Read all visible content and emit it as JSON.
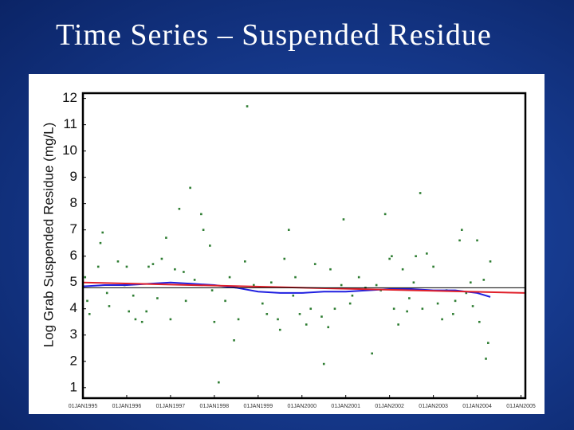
{
  "slide_title": "Time Series – Suspended Residue",
  "chart_data": {
    "type": "scatter",
    "ylabel": "Log Grab Suspended Residue (mg/L)",
    "xlim": [
      1995,
      2005.1
    ],
    "ylim": [
      0.6,
      12.2
    ],
    "xticks": [
      {
        "value": 1995,
        "label": "01JAN1995"
      },
      {
        "value": 1996,
        "label": "01JAN1996"
      },
      {
        "value": 1997,
        "label": "01JAN1997"
      },
      {
        "value": 1998,
        "label": "01JAN1998"
      },
      {
        "value": 1999,
        "label": "01JAN1999"
      },
      {
        "value": 2000,
        "label": "01JAN2000"
      },
      {
        "value": 2001,
        "label": "01JAN2001"
      },
      {
        "value": 2002,
        "label": "01JAN2002"
      },
      {
        "value": 2003,
        "label": "01JAN2003"
      },
      {
        "value": 2004,
        "label": "01JAN2004"
      },
      {
        "value": 2005,
        "label": "01JAN2005"
      }
    ],
    "yticks": [
      1,
      2,
      3,
      4,
      5,
      6,
      7,
      8,
      9,
      10,
      11,
      12
    ],
    "series": [
      {
        "type": "scatter",
        "color": "#2e7d32",
        "x": [
          1995.05,
          1995.1,
          1995.15,
          1995.35,
          1995.4,
          1995.45,
          1995.55,
          1995.6,
          1995.8,
          1995.95,
          1996.0,
          1996.05,
          1996.15,
          1996.2,
          1996.35,
          1996.45,
          1996.5,
          1996.6,
          1996.7,
          1996.8,
          1996.9,
          1997.0,
          1997.1,
          1997.2,
          1997.3,
          1997.35,
          1997.45,
          1997.55,
          1997.7,
          1997.75,
          1997.9,
          1997.95,
          1998.0,
          1998.1,
          1998.25,
          1998.35,
          1998.45,
          1998.55,
          1998.7,
          1998.75,
          1998.9,
          1999.1,
          1999.2,
          1999.3,
          1999.45,
          1999.5,
          1999.6,
          1999.7,
          1999.8,
          1999.85,
          1999.95,
          2000.1,
          2000.2,
          2000.3,
          2000.45,
          2000.5,
          2000.6,
          2000.65,
          2000.75,
          2000.9,
          2000.95,
          2001.1,
          2001.15,
          2001.3,
          2001.45,
          2001.6,
          2001.7,
          2001.8,
          2001.9,
          2002.0,
          2002.05,
          2002.1,
          2002.2,
          2002.3,
          2002.4,
          2002.45,
          2002.55,
          2002.6,
          2002.7,
          2002.75,
          2002.85,
          2003.0,
          2003.1,
          2003.2,
          2003.3,
          2003.45,
          2003.5,
          2003.6,
          2003.65,
          2003.75,
          2003.85,
          2003.9,
          2004.0,
          2004.05,
          2004.15,
          2004.2,
          2004.25,
          2004.3
        ],
        "values": [
          5.2,
          4.3,
          3.8,
          5.6,
          6.5,
          6.9,
          4.6,
          4.1,
          5.8,
          4.9,
          5.6,
          3.9,
          4.5,
          3.6,
          3.5,
          3.9,
          5.6,
          5.7,
          4.4,
          5.9,
          6.7,
          3.6,
          5.5,
          7.8,
          5.4,
          4.3,
          8.6,
          5.1,
          7.6,
          7.0,
          6.4,
          4.7,
          3.5,
          1.2,
          4.3,
          5.2,
          2.8,
          3.6,
          5.8,
          11.7,
          4.9,
          4.2,
          3.8,
          5.0,
          3.6,
          3.2,
          5.9,
          7.0,
          4.5,
          5.2,
          3.8,
          3.4,
          4.0,
          5.7,
          3.7,
          1.9,
          3.3,
          5.5,
          4.0,
          4.9,
          7.4,
          4.2,
          4.5,
          5.2,
          4.8,
          2.3,
          4.9,
          4.7,
          7.6,
          5.9,
          6.0,
          4.0,
          3.4,
          5.5,
          3.9,
          4.4,
          5.0,
          6.0,
          8.4,
          4.0,
          6.1,
          5.6,
          4.2,
          3.6,
          4.7,
          3.8,
          4.3,
          6.6,
          7.0,
          4.6,
          5.0,
          4.1,
          6.6,
          3.5,
          5.1,
          2.1,
          2.7,
          5.8
        ]
      },
      {
        "type": "line",
        "color": "#1f1fe0",
        "x": [
          1995,
          1995.5,
          1996,
          1996.5,
          1997,
          1997.5,
          1998,
          1998.5,
          1999,
          1999.5,
          2000,
          2000.5,
          2001,
          2001.5,
          2002,
          2002.5,
          2003,
          2003.5,
          2004,
          2004.3
        ],
        "values": [
          4.85,
          4.9,
          4.9,
          4.95,
          5.0,
          4.95,
          4.9,
          4.8,
          4.65,
          4.6,
          4.6,
          4.65,
          4.65,
          4.7,
          4.75,
          4.75,
          4.7,
          4.7,
          4.6,
          4.45
        ]
      },
      {
        "type": "line",
        "color": "#e0202a",
        "x": [
          1995,
          2005.1
        ],
        "values": [
          5.0,
          4.6
        ]
      },
      {
        "type": "line",
        "color": "#000000",
        "x": [
          1995,
          2005.1
        ],
        "values": [
          4.8,
          4.8
        ]
      }
    ]
  }
}
